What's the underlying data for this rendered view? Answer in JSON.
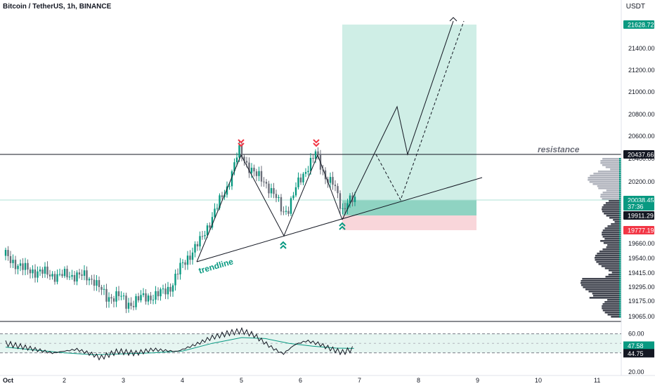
{
  "header": {
    "symbol_title": "Bitcoin / TetherUS, 1h, BINANCE",
    "currency": "USDT"
  },
  "chart_data": {
    "type": "candlestick",
    "title": "Bitcoin / TetherUS, 1h, BINANCE",
    "ylim": [
      19000,
      21700
    ],
    "y_ticks": [
      "21400.00",
      "21200.00",
      "21000.00",
      "20800.00",
      "20600.00",
      "20400.00",
      "20200.00",
      "19660.00",
      "19540.00",
      "19415.00",
      "19295.00",
      "19175.00",
      "19065.00"
    ],
    "x_ticks": [
      "Oct",
      "2",
      "3",
      "4",
      "5",
      "6",
      "7",
      "8",
      "9",
      "10",
      "11"
    ],
    "price_badges": [
      {
        "label": "21628.72",
        "color": "#089981"
      },
      {
        "label": "20437.66",
        "color": "#131722"
      },
      {
        "label": "20038.45",
        "color": "#089981"
      },
      {
        "label": "37:36",
        "color": "#089981"
      },
      {
        "label": "19911.29",
        "color": "#131722"
      },
      {
        "label": "19777.19",
        "color": "#f23645"
      }
    ],
    "annotations": {
      "resistance": "resistance",
      "trendline": "trendline"
    },
    "price_path": [
      [
        1.0,
        19560
      ],
      [
        1.3,
        19450
      ],
      [
        1.6,
        19420
      ],
      [
        1.9,
        19390
      ],
      [
        2.2,
        19400
      ],
      [
        2.5,
        19360
      ],
      [
        2.7,
        19200
      ],
      [
        2.9,
        19230
      ],
      [
        3.05,
        19150
      ],
      [
        3.3,
        19200
      ],
      [
        3.6,
        19230
      ],
      [
        3.8,
        19300
      ],
      [
        3.95,
        19450
      ],
      [
        4.1,
        19560
      ],
      [
        4.3,
        19680
      ],
      [
        4.5,
        19900
      ],
      [
        4.75,
        20150
      ],
      [
        4.95,
        20470
      ],
      [
        5.1,
        20350
      ],
      [
        5.25,
        20250
      ],
      [
        5.4,
        20200
      ],
      [
        5.55,
        20080
      ],
      [
        5.7,
        19940
      ],
      [
        5.8,
        19980
      ],
      [
        5.95,
        20180
      ],
      [
        6.1,
        20320
      ],
      [
        6.25,
        20440
      ],
      [
        6.4,
        20260
      ],
      [
        6.55,
        20180
      ],
      [
        6.7,
        19950
      ],
      [
        6.8,
        20050
      ],
      [
        6.95,
        20020
      ]
    ],
    "rsi": {
      "ylim": [
        20,
        70
      ],
      "ticks": [
        "60.00",
        "40.00",
        "20.00"
      ],
      "current": "47.58",
      "sma": "44.75",
      "path": [
        [
          1.0,
          48
        ],
        [
          1.4,
          43
        ],
        [
          1.8,
          38
        ],
        [
          2.2,
          42
        ],
        [
          2.5,
          36
        ],
        [
          2.6,
          33
        ],
        [
          2.9,
          40
        ],
        [
          3.2,
          38
        ],
        [
          3.5,
          42
        ],
        [
          3.9,
          40
        ],
        [
          4.2,
          47
        ],
        [
          4.5,
          55
        ],
        [
          4.8,
          60
        ],
        [
          5.0,
          62
        ],
        [
          5.2,
          58
        ],
        [
          5.5,
          45
        ],
        [
          5.7,
          38
        ],
        [
          5.9,
          48
        ],
        [
          6.1,
          52
        ],
        [
          6.3,
          49
        ],
        [
          6.5,
          44
        ],
        [
          6.7,
          40
        ],
        [
          6.9,
          44
        ]
      ],
      "ma_path": [
        [
          1.0,
          46
        ],
        [
          1.5,
          43
        ],
        [
          2.0,
          40
        ],
        [
          2.5,
          38
        ],
        [
          3.0,
          39
        ],
        [
          3.5,
          40
        ],
        [
          4.0,
          42
        ],
        [
          4.5,
          50
        ],
        [
          5.0,
          56
        ],
        [
          5.4,
          55
        ],
        [
          5.8,
          50
        ],
        [
          6.2,
          47
        ],
        [
          6.6,
          45
        ],
        [
          6.9,
          44.75
        ]
      ]
    },
    "volume_profile": "visible range profile on right edge",
    "long_position": {
      "entry": 20038.45,
      "target": 21628.72,
      "stop": 19777.19
    }
  }
}
